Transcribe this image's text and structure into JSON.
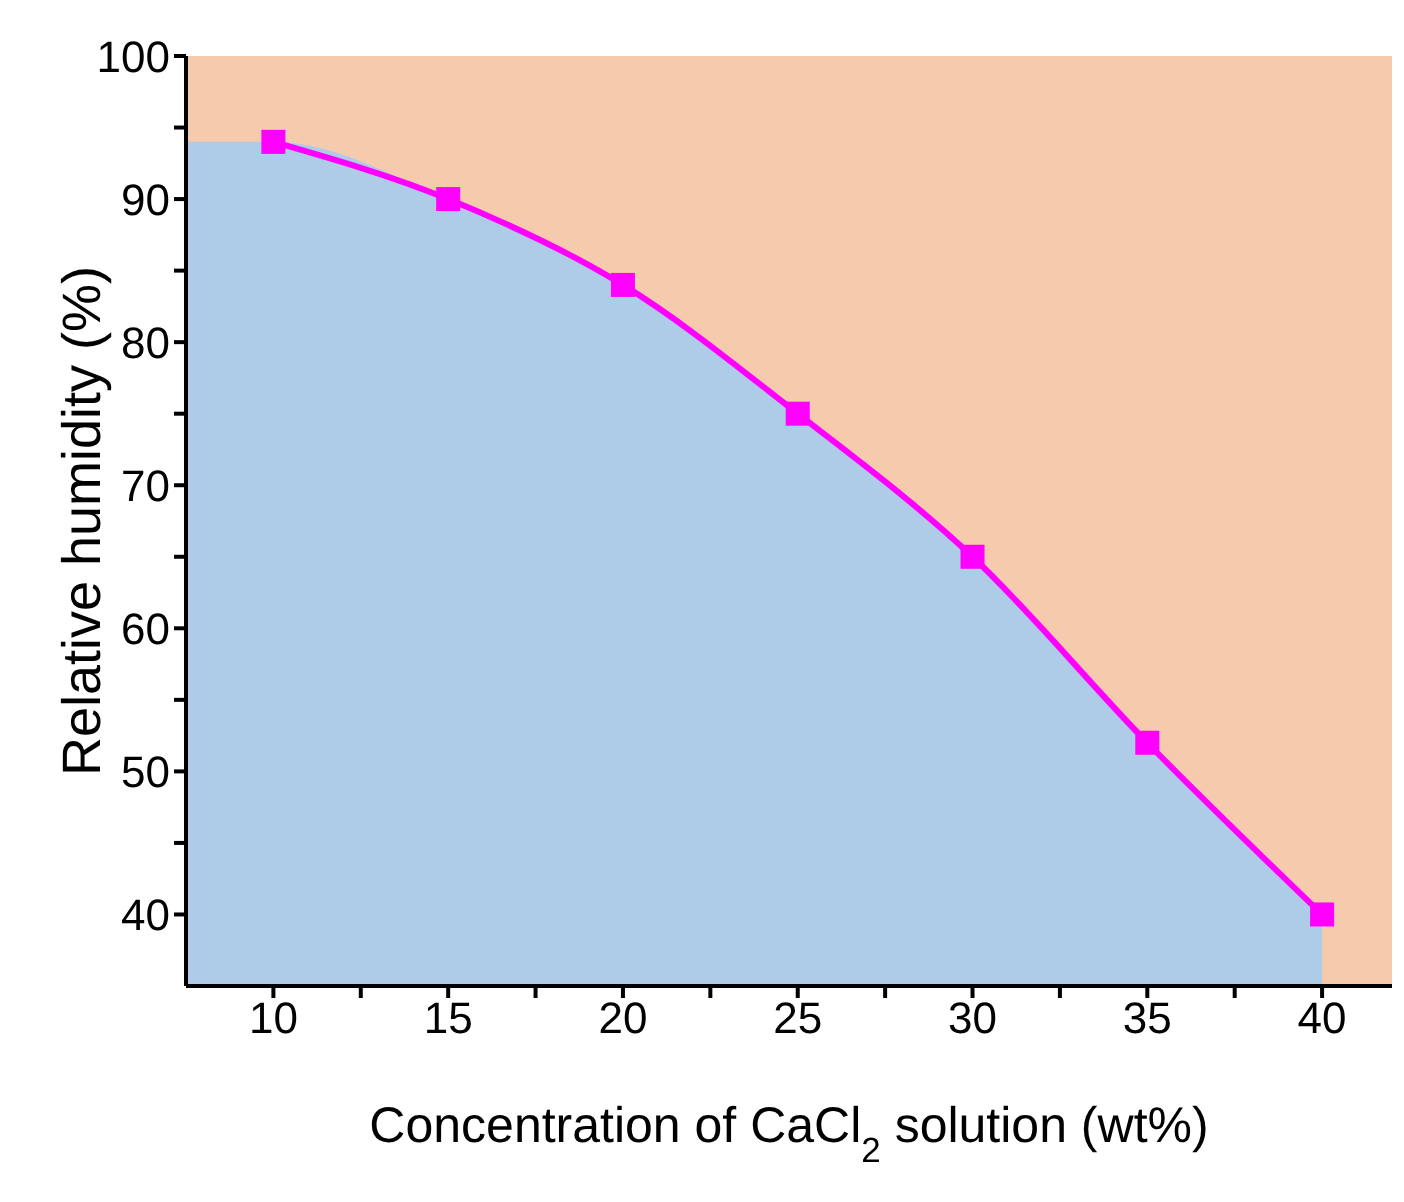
{
  "chart_data": {
    "type": "line",
    "xlabel": "Concentration of CaCl$_{2}$ solution (wt%)",
    "ylabel": "Relative humidity (%)",
    "xlim": [
      7.5,
      42
    ],
    "ylim": [
      35,
      100
    ],
    "xticks": [
      10,
      {
        "value": 12.5,
        "label": null
      },
      15,
      {
        "value": 17.5,
        "label": null
      },
      20,
      {
        "value": 22.5,
        "label": null
      },
      25,
      {
        "value": 27.5,
        "label": null
      },
      30,
      {
        "value": 32.5,
        "label": null
      },
      35,
      {
        "value": 37.5,
        "label": null
      },
      40
    ],
    "yticks": [
      40,
      {
        "value": 45,
        "label": null
      },
      50,
      {
        "value": 55,
        "label": null
      },
      60,
      {
        "value": 65,
        "label": null
      },
      70,
      {
        "value": 75,
        "label": null
      },
      80,
      {
        "value": 85,
        "label": null
      },
      90,
      {
        "value": 95,
        "label": null
      },
      100
    ],
    "bands": [
      {
        "axis": "x",
        "from": 7.5,
        "to": 42,
        "color": "#f6caad"
      }
    ],
    "series": [
      {
        "type": "area",
        "marker": "none",
        "color": "#aecbe8",
        "x": [
          7.5,
          10,
          15,
          20,
          25,
          30,
          35,
          40
        ],
        "values": [
          94,
          94,
          90,
          84,
          75,
          65,
          52,
          40
        ]
      },
      {
        "color": "#ff00ff",
        "x": [
          10,
          15,
          20,
          25,
          30,
          35,
          40
        ],
        "values": [
          94,
          90,
          84,
          75,
          65,
          52,
          40
        ]
      }
    ],
    "marker": "square",
    "line_style": "solid",
    "grid": false,
    "legend": false
  }
}
